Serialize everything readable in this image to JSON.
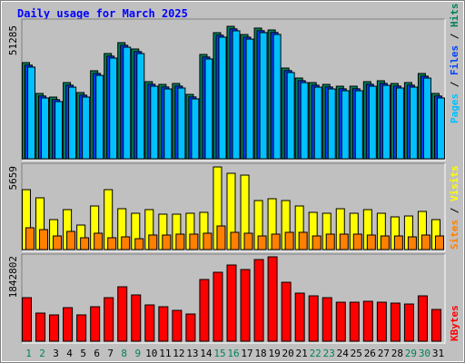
{
  "chart_data": [
    {
      "type": "bar",
      "title": "Daily usage for March 2025",
      "ylim": [
        0,
        51285
      ],
      "yticks": [
        51285
      ],
      "series": [
        {
          "name": "Pages",
          "color": "#00c0ff",
          "values": [
            35500,
            23550,
            22150,
            27750,
            23900,
            32300,
            39000,
            43200,
            40750,
            28100,
            27050,
            27400,
            23200,
            38650,
            47100,
            49550,
            46350,
            48850,
            48150,
            33400,
            29500,
            27750,
            27050,
            26350,
            26350,
            28100,
            28450,
            27400,
            27750,
            31250,
            23550
          ]
        },
        {
          "name": "Files",
          "color": "#0040ff",
          "values": [
            36250,
            24300,
            22900,
            28500,
            24650,
            33050,
            39750,
            43950,
            41500,
            28850,
            27800,
            28150,
            23950,
            39400,
            47850,
            50300,
            47100,
            49600,
            48900,
            34150,
            30250,
            28500,
            27800,
            27100,
            27100,
            28850,
            29200,
            28150,
            28500,
            32000,
            24300
          ]
        },
        {
          "name": "Hits",
          "color": "#00805c",
          "values": [
            37238,
            25292,
            23887,
            29507,
            25643,
            34074,
            40748,
            44963,
            42504,
            29858,
            28805,
            29156,
            24940,
            40397,
            48827,
            51285,
            48100,
            50600,
            49880,
            35127,
            31263,
            29507,
            28805,
            28102,
            28102,
            29858,
            30209,
            29156,
            29507,
            33020,
            25292
          ]
        }
      ]
    },
    {
      "type": "bar",
      "ylim": [
        0,
        5659
      ],
      "yticks": [
        5659
      ],
      "series": [
        {
          "name": "Sites",
          "color": "#ff8000",
          "values": [
            1493,
            1368,
            933,
            1244,
            809,
            1120,
            809,
            871,
            746,
            995,
            995,
            1057,
            1057,
            1120,
            1617,
            1182,
            1120,
            933,
            1057,
            1182,
            1182,
            933,
            1057,
            1057,
            1057,
            995,
            933,
            933,
            871,
            995,
            933
          ]
        },
        {
          "name": "Visits",
          "color": "#ffff00",
          "values": [
            4105,
            3545,
            2053,
            2737,
            1679,
            2986,
            4105,
            2799,
            2488,
            2737,
            2426,
            2426,
            2488,
            2550,
            5659,
            5225,
            5100,
            3359,
            3483,
            3359,
            2986,
            2550,
            2488,
            2799,
            2488,
            2737,
            2488,
            2239,
            2301,
            2612,
            2053
          ]
        }
      ]
    },
    {
      "type": "bar",
      "ylim": [
        0,
        1842802
      ],
      "yticks": [
        1842802
      ],
      "categories": [
        "1",
        "2",
        "3",
        "4",
        "5",
        "6",
        "7",
        "8",
        "9",
        "10",
        "11",
        "12",
        "13",
        "14",
        "15",
        "16",
        "17",
        "18",
        "19",
        "20",
        "21",
        "22",
        "23",
        "24",
        "25",
        "26",
        "27",
        "28",
        "29",
        "30",
        "31"
      ],
      "label_colors": [
        "#00805c",
        "#00805c",
        "#000000",
        "#000000",
        "#000000",
        "#000000",
        "#000000",
        "#00805c",
        "#00805c",
        "#000000",
        "#000000",
        "#000000",
        "#000000",
        "#000000",
        "#00805c",
        "#00805c",
        "#000000",
        "#000000",
        "#000000",
        "#000000",
        "#000000",
        "#00805c",
        "#00805c",
        "#000000",
        "#000000",
        "#000000",
        "#000000",
        "#000000",
        "#00805c",
        "#00805c",
        "#000000"
      ],
      "series": [
        {
          "name": "KBytes",
          "color": "#ff0000",
          "values": [
            951120,
            614265,
            574635,
            733155,
            574635,
            752970,
            951120,
            1188900,
            1010565,
            792600,
            752970,
            673710,
            594450,
            1347420,
            1505940,
            1664460,
            1565385,
            1783350,
            1842802,
            1287975,
            1050195,
            990750,
            951120,
            852045,
            852045,
            871860,
            852045,
            832230,
            812415,
            990750,
            693525
          ]
        }
      ]
    }
  ]
}
